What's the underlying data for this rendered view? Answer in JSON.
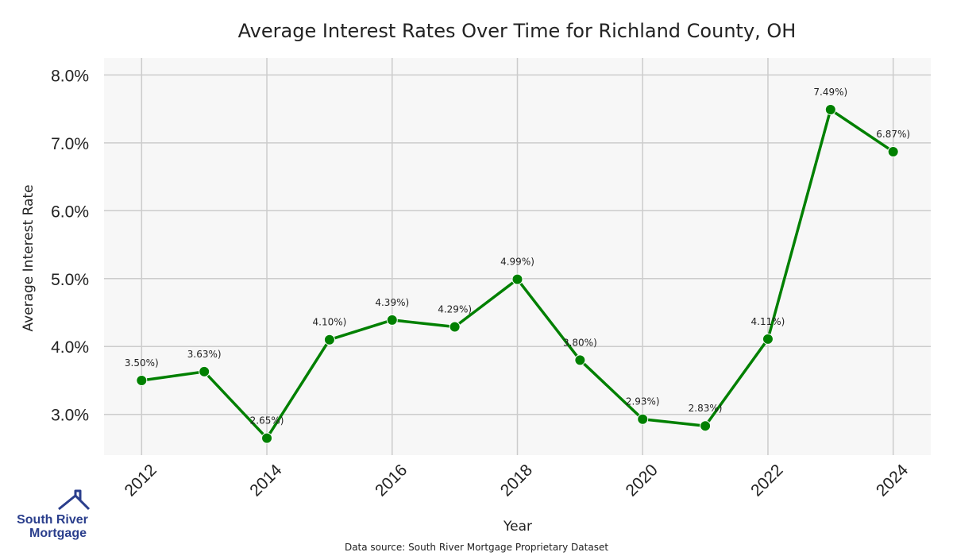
{
  "chart_data": {
    "type": "line",
    "title": "Average Interest Rates Over Time for Richland County, OH",
    "xlabel": "Year",
    "ylabel": "Average Interest Rate",
    "x": [
      2012,
      2013,
      2014,
      2015,
      2016,
      2017,
      2018,
      2019,
      2020,
      2021,
      2022,
      2023,
      2024
    ],
    "values": [
      3.5,
      3.63,
      2.65,
      4.1,
      4.39,
      4.29,
      4.99,
      3.8,
      2.93,
      2.83,
      4.11,
      7.49,
      6.87
    ],
    "data_labels": [
      "3.50%)",
      "3.63%)",
      "2.65%)",
      "4.10%)",
      "4.39%)",
      "4.29%)",
      "4.99%)",
      "3.80%)",
      "2.93%)",
      "2.83%)",
      "4.11%)",
      "7.49%)",
      "6.87%)"
    ],
    "x_ticks": [
      "2012",
      "2014",
      "2016",
      "2018",
      "2020",
      "2022",
      "2024"
    ],
    "x_tick_values": [
      2012,
      2014,
      2016,
      2018,
      2020,
      2022,
      2024
    ],
    "y_ticks": [
      "3.0%",
      "4.0%",
      "5.0%",
      "6.0%",
      "7.0%",
      "8.0%"
    ],
    "y_tick_values": [
      3,
      4,
      5,
      6,
      7,
      8
    ],
    "xlim": [
      2011.4,
      2024.6
    ],
    "ylim": [
      2.4,
      8.25
    ],
    "grid": true,
    "line_color": "#008000",
    "background_color": "#f7f7f7",
    "grid_color": "#cccccc"
  },
  "source_note": "Data source: South River Mortgage Proprietary Dataset",
  "logo": {
    "line1": "South River",
    "line2": "Mortgage",
    "color": "#2a3e8c"
  }
}
